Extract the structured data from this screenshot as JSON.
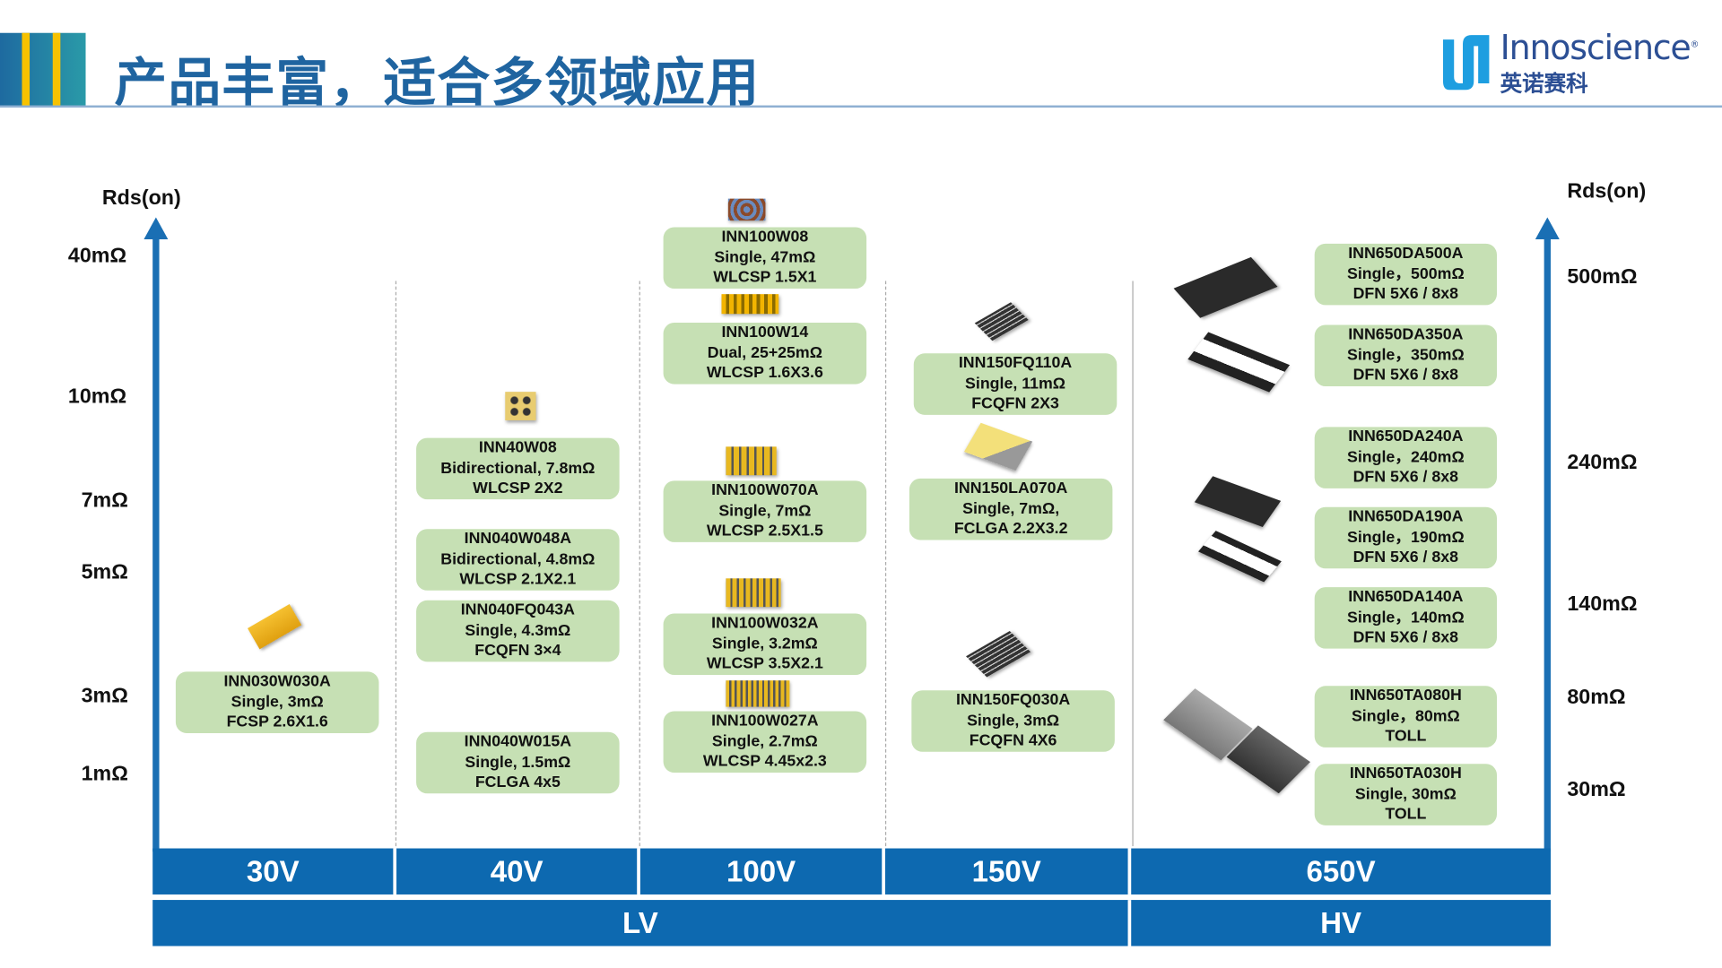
{
  "header": {
    "title": "产品丰富，适合多领域应用",
    "logo": {
      "name": "Innoscience",
      "cn": "英诺赛科",
      "mark": "®"
    },
    "colors": {
      "title": "#1f64a0",
      "accent_stripe": "#f7c200",
      "logo": "#2c4f94"
    }
  },
  "left_axis": {
    "label": "Rds(on)",
    "ticks": [
      "40mΩ",
      "10mΩ",
      "7mΩ",
      "5mΩ",
      "3mΩ",
      "1mΩ"
    ]
  },
  "right_axis": {
    "label": "Rds(on)",
    "ticks": [
      "500mΩ",
      "240mΩ",
      "140mΩ",
      "80mΩ",
      "30mΩ"
    ]
  },
  "voltages": [
    "30V",
    "40V",
    "100V",
    "150V",
    "650V"
  ],
  "classes": [
    "LV",
    "HV"
  ],
  "colors": {
    "axis": "#1a6fb4",
    "bar": "#0d69b0",
    "card": "#c6e0b4"
  },
  "products": [
    {
      "voltage": "30V",
      "lines": [
        "INN030W030A",
        "Single, 3mΩ",
        "FCSP 2.6X1.6"
      ],
      "chip": "gold-bump-array"
    },
    {
      "voltage": "40V",
      "lines": [
        "INN40W08",
        "Bidirectional, 7.8mΩ",
        "WLCSP 2X2"
      ],
      "chip": "wlcsp-2x2"
    },
    {
      "voltage": "40V",
      "lines": [
        "INN040W048A",
        "Bidirectional, 4.8mΩ",
        "WLCSP 2.1X2.1"
      ]
    },
    {
      "voltage": "40V",
      "lines": [
        "INN040FQ043A",
        "Single, 4.3mΩ",
        "FCQFN 3×4"
      ]
    },
    {
      "voltage": "40V",
      "lines": [
        "INN040W015A",
        "Single, 1.5mΩ",
        "FCLGA 4x5"
      ]
    },
    {
      "voltage": "100V",
      "lines": [
        "INN100W08",
        "Single, 47mΩ",
        "WLCSP 1.5X1"
      ],
      "chip": "wlcsp-brown"
    },
    {
      "voltage": "100V",
      "lines": [
        "INN100W14",
        "Dual, 25+25mΩ",
        "WLCSP 1.6X3.6"
      ],
      "chip": "gold-bump-array"
    },
    {
      "voltage": "100V",
      "lines": [
        "INN100W070A",
        "Single, 7mΩ",
        "WLCSP 2.5X1.5"
      ],
      "chip": "gold-bar-array"
    },
    {
      "voltage": "100V",
      "lines": [
        "INN100W032A",
        "Single, 3.2mΩ",
        "WLCSP 3.5X2.1"
      ],
      "chip": "gold-bar-array"
    },
    {
      "voltage": "100V",
      "lines": [
        "INN100W027A",
        "Single, 2.7mΩ",
        "WLCSP 4.45x2.3"
      ],
      "chip": "gold-bar-array"
    },
    {
      "voltage": "150V",
      "lines": [
        "INN150FQ110A",
        "Single, 11mΩ",
        "FCQFN 2X3"
      ],
      "chip": "fcqfn-black"
    },
    {
      "voltage": "150V",
      "lines": [
        "INN150LA070A",
        "Single, 7mΩ,",
        "FCLGA 2.2X3.2"
      ],
      "chip": "fclga-gold"
    },
    {
      "voltage": "150V",
      "lines": [
        "INN150FQ030A",
        "Single, 3mΩ",
        "FCQFN 4X6"
      ],
      "chip": "fcqfn-black"
    },
    {
      "voltage": "650V",
      "lines": [
        "INN650DA500A",
        "Single，500mΩ",
        "DFN 5X6 / 8x8"
      ],
      "chip": "dfn-black"
    },
    {
      "voltage": "650V",
      "lines": [
        "INN650DA350A",
        "Single，350mΩ",
        "DFN 5X6 / 8x8"
      ],
      "chip": "dfn-black"
    },
    {
      "voltage": "650V",
      "lines": [
        "INN650DA240A",
        "Single，240mΩ",
        "DFN 5X6 / 8x8"
      ],
      "chip": "dfn-black"
    },
    {
      "voltage": "650V",
      "lines": [
        "INN650DA190A",
        "Single，190mΩ",
        "DFN 5X6 / 8x8"
      ],
      "chip": "dfn-black"
    },
    {
      "voltage": "650V",
      "lines": [
        "INN650DA140A",
        "Single，140mΩ",
        "DFN 5X6 / 8x8"
      ]
    },
    {
      "voltage": "650V",
      "lines": [
        "INN650TA080H",
        "Single，80mΩ",
        "TOLL"
      ],
      "chip": "toll-gray"
    },
    {
      "voltage": "650V",
      "lines": [
        "INN650TA030H",
        "Single, 30mΩ",
        "TOLL"
      ],
      "chip": "toll-gray"
    }
  ]
}
